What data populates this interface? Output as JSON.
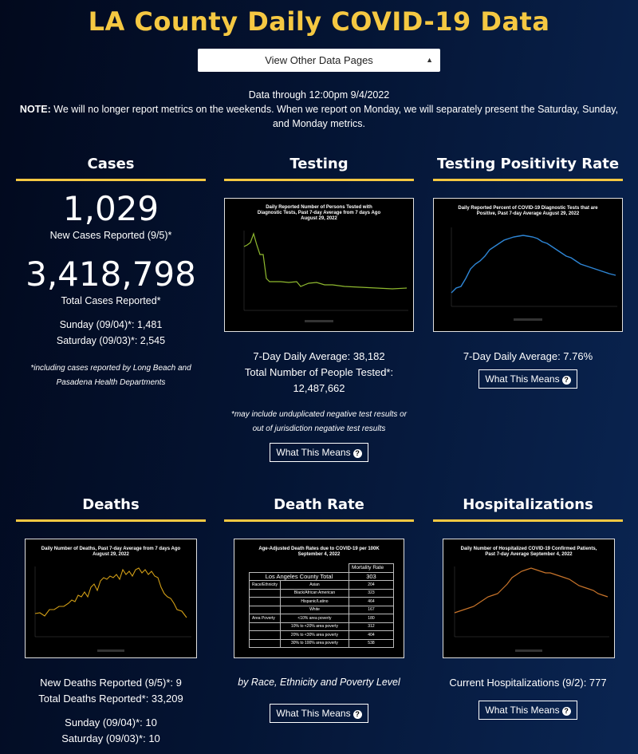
{
  "page": {
    "title": "LA County Daily COVID-19 Data",
    "dropdown": "View Other Data Pages",
    "data_through": "Data through 12:00pm 9/4/2022",
    "note_label": "NOTE:",
    "note_text": "We will no longer report metrics on the weekends. When we report on Monday, we will separately present the Saturday, Sunday, and Monday metrics."
  },
  "cases": {
    "title": "Cases",
    "new_cases_value": "1,029",
    "new_cases_label": "New Cases Reported (9/5)*",
    "total_value": "3,418,798",
    "total_label": "Total Cases Reported*",
    "sunday": "Sunday (09/04)*: 1,481",
    "saturday": "Saturday (09/03)*: 2,545",
    "footnote": "*including cases reported by Long Beach and Pasadena Health Departments"
  },
  "testing": {
    "title": "Testing",
    "chart_title": "Daily Reported Number of Persons Tested with Diagnostic Tests, Past 7-day Average from 7 days Ago August 29, 2022",
    "avg": "7-Day Daily Average: 38,182",
    "total_line1": "Total Number of People Tested*:",
    "total_line2": "12,487,662",
    "footnote": "*may include unduplicated negative test results or out of jurisdiction negative test results",
    "button": "What This Means",
    "color": "#8fb92f"
  },
  "positivity": {
    "title": "Testing Positivity Rate",
    "chart_title": "Daily Reported Percent of COVID-19 Diagnostic Tests that are Positive, Past 7-day Average August 29, 2022",
    "avg": "7-Day Daily Average: 7.76%",
    "button": "What This Means",
    "color": "#2e86d6"
  },
  "deaths": {
    "title": "Deaths",
    "chart_title": "Daily Number of Deaths, Past 7-day Average from 7 days Ago August 29, 2022",
    "new": "New Deaths Reported (9/5)*: 9",
    "total": "Total Deaths Reported*: 33,209",
    "sunday": "Sunday (09/04)*: 10",
    "saturday": "Saturday (09/03)*: 10",
    "color": "#d4a017"
  },
  "death_rate": {
    "title": "Death Rate",
    "chart_title": "Age-Adjusted Death Rates due to COVID-19 per 100K September 4, 2022",
    "table_header": "Mortality Rate",
    "county_label": "Los Angeles County Total",
    "county_value": "303",
    "rows": [
      {
        "group": "Race/Ethnicity",
        "label": "Asian",
        "value": "204"
      },
      {
        "group": "",
        "label": "Black/African American",
        "value": "323"
      },
      {
        "group": "",
        "label": "Hispanic/Latino",
        "value": "464"
      },
      {
        "group": "",
        "label": "White",
        "value": "167"
      },
      {
        "group": "Area Poverty",
        "label": "<10% area poverty",
        "value": "180"
      },
      {
        "group": "",
        "label": "10% to <20% area poverty",
        "value": "312"
      },
      {
        "group": "",
        "label": "20% to <30% area poverty",
        "value": "404"
      },
      {
        "group": "",
        "label": "30% to 100% area poverty",
        "value": "538"
      }
    ],
    "caption": "by Race, Ethnicity and Poverty Level",
    "button": "What This Means"
  },
  "hosp": {
    "title": "Hospitalizations",
    "chart_title": "Daily Number of Hospitalized COVID-19 Confirmed Patients, Past 7-day Average September 4, 2022",
    "current": "Current Hospitalizations (9/2): 777",
    "button": "What This Means",
    "color": "#c8742a"
  }
}
